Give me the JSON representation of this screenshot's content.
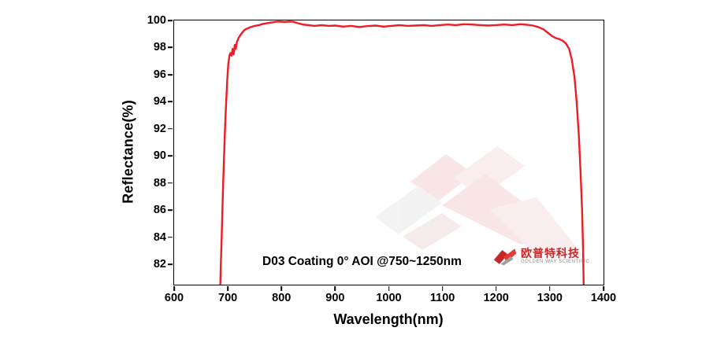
{
  "chart_data": {
    "type": "line",
    "title": "",
    "xlabel": "Wavelength(nm)",
    "ylabel": "Reflectance(%)",
    "xlim": [
      600,
      1400
    ],
    "ylim": [
      80.5,
      100
    ],
    "x_ticks": [
      600,
      700,
      800,
      900,
      1000,
      1100,
      1200,
      1300,
      1400
    ],
    "y_ticks": [
      82,
      84,
      86,
      88,
      90,
      92,
      94,
      96,
      98,
      100
    ],
    "grid": false,
    "legend": "none",
    "annotation": "D03 Coating  0° AOI @750~1250nm",
    "series": [
      {
        "name": "D03 coating reflectance",
        "color": "#ee1c25",
        "points": [
          [
            686,
            80.5
          ],
          [
            687,
            82.0
          ],
          [
            689,
            84.5
          ],
          [
            691,
            87.5
          ],
          [
            693,
            90.0
          ],
          [
            695,
            92.2
          ],
          [
            697,
            94.0
          ],
          [
            699,
            95.6
          ],
          [
            701,
            96.8
          ],
          [
            703,
            97.4
          ],
          [
            705,
            97.6
          ],
          [
            707,
            97.4
          ],
          [
            709,
            97.9
          ],
          [
            711,
            97.5
          ],
          [
            713,
            98.2
          ],
          [
            715,
            97.9
          ],
          [
            717,
            98.4
          ],
          [
            720,
            98.7
          ],
          [
            723,
            98.9
          ],
          [
            727,
            99.1
          ],
          [
            731,
            99.3
          ],
          [
            736,
            99.4
          ],
          [
            742,
            99.5
          ],
          [
            750,
            99.6
          ],
          [
            758,
            99.65
          ],
          [
            766,
            99.75
          ],
          [
            774,
            99.8
          ],
          [
            782,
            99.85
          ],
          [
            790,
            99.9
          ],
          [
            798,
            99.92
          ],
          [
            806,
            99.88
          ],
          [
            814,
            99.92
          ],
          [
            822,
            99.9
          ],
          [
            830,
            99.8
          ],
          [
            840,
            99.7
          ],
          [
            850,
            99.65
          ],
          [
            862,
            99.6
          ],
          [
            875,
            99.65
          ],
          [
            888,
            99.6
          ],
          [
            900,
            99.62
          ],
          [
            915,
            99.55
          ],
          [
            930,
            99.6
          ],
          [
            945,
            99.52
          ],
          [
            960,
            99.58
          ],
          [
            975,
            99.62
          ],
          [
            990,
            99.55
          ],
          [
            1005,
            99.6
          ],
          [
            1020,
            99.65
          ],
          [
            1035,
            99.6
          ],
          [
            1050,
            99.62
          ],
          [
            1065,
            99.65
          ],
          [
            1080,
            99.6
          ],
          [
            1095,
            99.66
          ],
          [
            1110,
            99.7
          ],
          [
            1125,
            99.66
          ],
          [
            1140,
            99.72
          ],
          [
            1155,
            99.7
          ],
          [
            1170,
            99.66
          ],
          [
            1185,
            99.62
          ],
          [
            1200,
            99.66
          ],
          [
            1215,
            99.7
          ],
          [
            1230,
            99.66
          ],
          [
            1245,
            99.72
          ],
          [
            1258,
            99.68
          ],
          [
            1268,
            99.62
          ],
          [
            1278,
            99.52
          ],
          [
            1288,
            99.35
          ],
          [
            1296,
            99.1
          ],
          [
            1304,
            98.85
          ],
          [
            1311,
            98.7
          ],
          [
            1318,
            98.62
          ],
          [
            1324,
            98.5
          ],
          [
            1330,
            98.3
          ],
          [
            1336,
            97.9
          ],
          [
            1341,
            97.1
          ],
          [
            1346,
            95.8
          ],
          [
            1350,
            94.0
          ],
          [
            1354,
            91.5
          ],
          [
            1357,
            89.0
          ],
          [
            1360,
            86.0
          ],
          [
            1362,
            83.0
          ],
          [
            1363,
            80.5
          ]
        ]
      }
    ]
  },
  "logo": {
    "brand_cn": "欧普特科技",
    "brand_en": "GOLDEN WAY SCIENTIFIC"
  }
}
